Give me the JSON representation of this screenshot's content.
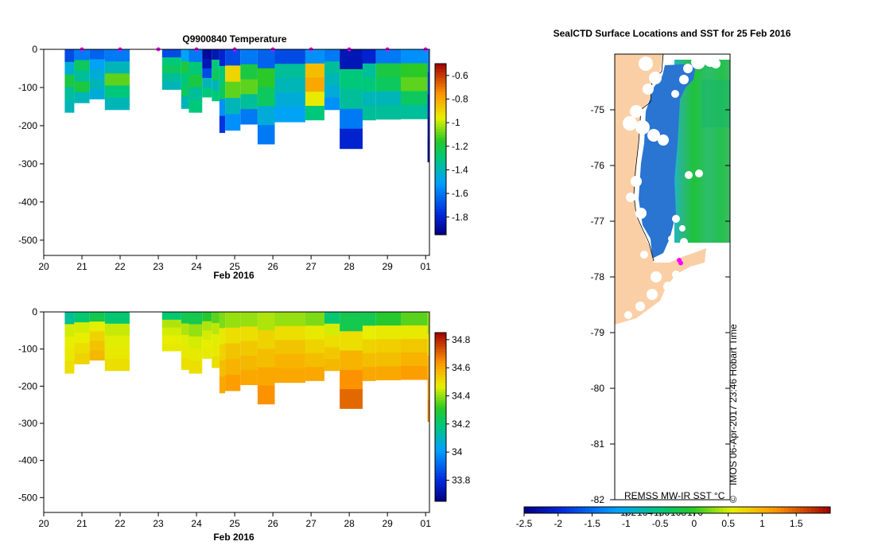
{
  "chart_data": [
    {
      "type": "heatmap",
      "panel": "temperature-section",
      "title": "Q9900840  Temperature",
      "xlabel": "Feb 2016",
      "x_ticks": [
        "20",
        "21",
        "22",
        "23",
        "24",
        "25",
        "26",
        "27",
        "28",
        "29",
        "01"
      ],
      "y_ticks": [
        "0",
        "-100",
        "-200",
        "-300",
        "-400",
        "-500"
      ],
      "xlim": [
        20,
        30.1
      ],
      "ylim": [
        -540,
        0
      ],
      "colorbar_ticks": [
        "-0.6",
        "-0.8",
        "-1",
        "-1.2",
        "-1.4",
        "-1.6",
        "-1.8"
      ],
      "colorbar_range": [
        -1.95,
        -0.5
      ],
      "surface_markers": [
        21,
        22,
        23,
        24,
        25,
        26,
        27,
        28,
        29,
        30
      ],
      "profiles": [
        {
          "start": 20.55,
          "end": 20.8,
          "depth": 165,
          "values": [
            -1.7,
            -1.45,
            -1.2,
            -1.35,
            -1.4
          ]
        },
        {
          "start": 20.8,
          "end": 21.2,
          "depth": 140,
          "values": [
            -1.6,
            -1.25,
            -1.35,
            -1.2,
            -1.4
          ]
        },
        {
          "start": 21.2,
          "end": 21.6,
          "depth": 130,
          "values": [
            -1.65,
            -1.5,
            -1.45,
            -1.4,
            -1.45
          ]
        },
        {
          "start": 21.6,
          "end": 22.25,
          "depth": 158,
          "values": [
            -1.6,
            -1.4,
            -1.1,
            -1.3,
            -1.4
          ]
        },
        {
          "start": 23.1,
          "end": 23.6,
          "depth": 105,
          "values": [
            -1.7,
            -1.3,
            -1.25,
            -1.35,
            -1.4
          ]
        },
        {
          "start": 23.6,
          "end": 23.8,
          "depth": 155,
          "values": [
            -1.5,
            -1.2,
            -1.3,
            -1.25,
            -1.4
          ]
        },
        {
          "start": 23.8,
          "end": 24.15,
          "depth": 165,
          "values": [
            -1.6,
            -1.3,
            -1.2,
            -1.35,
            -1.3
          ]
        },
        {
          "start": 24.15,
          "end": 24.4,
          "depth": 125,
          "values": [
            -1.9,
            -1.85,
            -1.7,
            -1.4,
            -1.3
          ]
        },
        {
          "start": 24.4,
          "end": 24.6,
          "depth": 135,
          "values": [
            -1.85,
            -1.3,
            -1.25,
            -1.4,
            -1.3
          ]
        },
        {
          "start": 24.6,
          "end": 24.75,
          "depth": 218,
          "values": [
            -1.8,
            -1.3,
            -1.25,
            -1.55,
            -1.75
          ]
        },
        {
          "start": 24.75,
          "end": 25.15,
          "depth": 212,
          "values": [
            -1.7,
            -0.9,
            -1.1,
            -1.4,
            -1.55
          ]
        },
        {
          "start": 25.15,
          "end": 25.6,
          "depth": 196,
          "values": [
            -1.6,
            -1.2,
            -1.1,
            -1.35,
            -1.6
          ]
        },
        {
          "start": 25.6,
          "end": 26.05,
          "depth": 248,
          "values": [
            -1.65,
            -1.15,
            -1.25,
            -1.45,
            -1.6
          ]
        },
        {
          "start": 26.05,
          "end": 26.85,
          "depth": 190,
          "values": [
            -1.7,
            -1.35,
            -1.4,
            -1.45,
            -1.5
          ]
        },
        {
          "start": 26.85,
          "end": 27.35,
          "depth": 185,
          "values": [
            -1.55,
            -0.85,
            -0.8,
            -0.95,
            -1.3
          ]
        },
        {
          "start": 27.35,
          "end": 27.75,
          "depth": 158,
          "values": [
            -1.6,
            -1.35,
            -1.4,
            -1.45,
            -1.55
          ]
        },
        {
          "start": 27.75,
          "end": 28.35,
          "depth": 260,
          "values": [
            -1.85,
            -1.3,
            -1.35,
            -1.6,
            -1.8
          ]
        },
        {
          "start": 28.35,
          "end": 28.7,
          "depth": 185,
          "values": [
            -1.8,
            -1.35,
            -1.3,
            -1.4,
            -1.35
          ]
        },
        {
          "start": 28.7,
          "end": 29.35,
          "depth": 183,
          "values": [
            -1.6,
            -1.2,
            -1.25,
            -1.4,
            -1.35
          ]
        },
        {
          "start": 29.35,
          "end": 30.05,
          "depth": 182,
          "values": [
            -1.55,
            -1.15,
            -1.1,
            -1.25,
            -1.35
          ]
        },
        {
          "start": 30.05,
          "end": 30.1,
          "depth": 295,
          "values": [
            -1.6,
            -1.7,
            -1.8,
            -1.85,
            -1.9
          ]
        }
      ]
    },
    {
      "type": "heatmap",
      "panel": "salinity-section",
      "title": "",
      "xlabel": "Feb 2016",
      "x_ticks": [
        "20",
        "21",
        "22",
        "23",
        "24",
        "25",
        "26",
        "27",
        "28",
        "29",
        "01"
      ],
      "y_ticks": [
        "0",
        "-100",
        "-200",
        "-300",
        "-400",
        "-500"
      ],
      "xlim": [
        20,
        30.1
      ],
      "ylim": [
        -540,
        0
      ],
      "colorbar_ticks": [
        "34.8",
        "34.6",
        "34.4",
        "34.2",
        "34",
        "33.8"
      ],
      "colorbar_range": [
        33.65,
        34.85
      ],
      "profiles": [
        {
          "start": 20.55,
          "end": 20.8,
          "depth": 165,
          "values": [
            34.15,
            34.45,
            34.47,
            34.48,
            34.5
          ]
        },
        {
          "start": 20.8,
          "end": 21.2,
          "depth": 140,
          "values": [
            34.2,
            34.45,
            34.47,
            34.5,
            34.52
          ]
        },
        {
          "start": 21.2,
          "end": 21.6,
          "depth": 130,
          "values": [
            34.25,
            34.47,
            34.52,
            34.55,
            34.57
          ]
        },
        {
          "start": 21.6,
          "end": 22.25,
          "depth": 158,
          "values": [
            34.2,
            34.44,
            34.46,
            34.48,
            34.5
          ]
        },
        {
          "start": 23.1,
          "end": 23.6,
          "depth": 105,
          "values": [
            34.2,
            34.42,
            34.45,
            34.47,
            34.48
          ]
        },
        {
          "start": 23.6,
          "end": 23.8,
          "depth": 155,
          "values": [
            34.25,
            34.42,
            34.46,
            34.48,
            34.5
          ]
        },
        {
          "start": 23.8,
          "end": 24.15,
          "depth": 165,
          "values": [
            34.25,
            34.4,
            34.45,
            34.48,
            34.5
          ]
        },
        {
          "start": 24.15,
          "end": 24.4,
          "depth": 125,
          "values": [
            34.3,
            34.42,
            34.45,
            34.47,
            34.48
          ]
        },
        {
          "start": 24.4,
          "end": 24.6,
          "depth": 150,
          "values": [
            34.35,
            34.43,
            34.46,
            34.48,
            34.5
          ]
        },
        {
          "start": 24.6,
          "end": 24.75,
          "depth": 218,
          "values": [
            34.38,
            34.48,
            34.52,
            34.56,
            34.6
          ]
        },
        {
          "start": 24.75,
          "end": 25.15,
          "depth": 212,
          "values": [
            34.4,
            34.5,
            34.55,
            34.58,
            34.62
          ]
        },
        {
          "start": 25.15,
          "end": 25.6,
          "depth": 196,
          "values": [
            34.4,
            34.5,
            34.54,
            34.57,
            34.6
          ]
        },
        {
          "start": 25.6,
          "end": 26.05,
          "depth": 248,
          "values": [
            34.42,
            34.52,
            34.56,
            34.6,
            34.64
          ]
        },
        {
          "start": 26.05,
          "end": 26.85,
          "depth": 190,
          "values": [
            34.4,
            34.5,
            34.55,
            34.58,
            34.6
          ]
        },
        {
          "start": 26.85,
          "end": 27.35,
          "depth": 185,
          "values": [
            34.38,
            34.48,
            34.52,
            34.56,
            34.6
          ]
        },
        {
          "start": 27.35,
          "end": 27.75,
          "depth": 158,
          "values": [
            34.2,
            34.45,
            34.5,
            34.54,
            34.57
          ]
        },
        {
          "start": 27.75,
          "end": 28.35,
          "depth": 260,
          "values": [
            34.25,
            34.5,
            34.58,
            34.64,
            34.7
          ]
        },
        {
          "start": 28.35,
          "end": 28.7,
          "depth": 185,
          "values": [
            34.25,
            34.47,
            34.52,
            34.56,
            34.6
          ]
        },
        {
          "start": 28.7,
          "end": 29.35,
          "depth": 183,
          "values": [
            34.3,
            34.48,
            34.53,
            34.56,
            34.6
          ]
        },
        {
          "start": 29.35,
          "end": 30.05,
          "depth": 182,
          "values": [
            34.35,
            34.48,
            34.54,
            34.58,
            34.62
          ]
        },
        {
          "start": 30.05,
          "end": 30.1,
          "depth": 295,
          "values": [
            34.4,
            34.5,
            34.58,
            34.62,
            34.66
          ]
        }
      ]
    },
    {
      "type": "heatmap",
      "panel": "sst-map",
      "title": "SealCTD Surface Locations and SST for 25 Feb 2016",
      "ylabel": "",
      "y_ticks": [
        "-75",
        "-76",
        "-77",
        "-78",
        "-79",
        "-80",
        "-81",
        "-82"
      ],
      "ylim": [
        -82,
        -74
      ],
      "lon_ticks": [
        "162",
        "164",
        "166",
        "168",
        "170"
      ],
      "colorbar_ticks": [
        "-2.5",
        "-2",
        "-1.5",
        "-1",
        "-0.5",
        "0",
        "0.5",
        "1",
        "1.5"
      ],
      "colorbar_range": [
        -2.5,
        2.0
      ],
      "sst_source": "REMSS MW-IR SST °C",
      "seal_locations": [
        {
          "lat": -77.7,
          "lon": 166.2
        },
        {
          "lat": -77.75,
          "lon": 166.3
        }
      ],
      "timestamp": "IMOS 06-Apr-2017 23:46 Hobart Time",
      "copyright": "©"
    }
  ],
  "colors": {
    "land": "#fbcfa6",
    "seal_marker": "#ff00ff",
    "axis": "#000000"
  }
}
